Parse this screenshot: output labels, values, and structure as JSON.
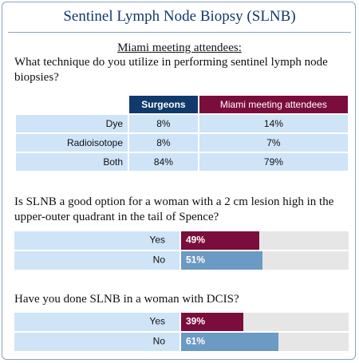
{
  "header": {
    "title": "Sentinel Lymph Node Biopsy (SLNB)"
  },
  "intro": {
    "audience": "Miami meeting attendees:",
    "question": "What technique do you utilize in performing sentinel lymph node biopsies?"
  },
  "table": {
    "columns": [
      "Surgeons",
      "Miami meeting attendees"
    ],
    "rows": [
      [
        "Dye",
        "8%",
        "14%"
      ],
      [
        "Radioisotope",
        "8%",
        "7%"
      ],
      [
        "Both",
        "84%",
        "79%"
      ]
    ]
  },
  "questions": [
    {
      "text": "Is SLNB a good option for a woman with a 2 cm lesion high in the upper-outer quadrant in the tail of Spence?",
      "categories": [
        "Yes",
        "No"
      ],
      "values": [
        49,
        51
      ],
      "value_labels": [
        "49%",
        "51%"
      ]
    },
    {
      "text": "Have you done SLNB in a woman with DCIS?",
      "categories": [
        "Yes",
        "No"
      ],
      "values": [
        39,
        61
      ],
      "value_labels": [
        "39%",
        "61%"
      ]
    }
  ]
}
